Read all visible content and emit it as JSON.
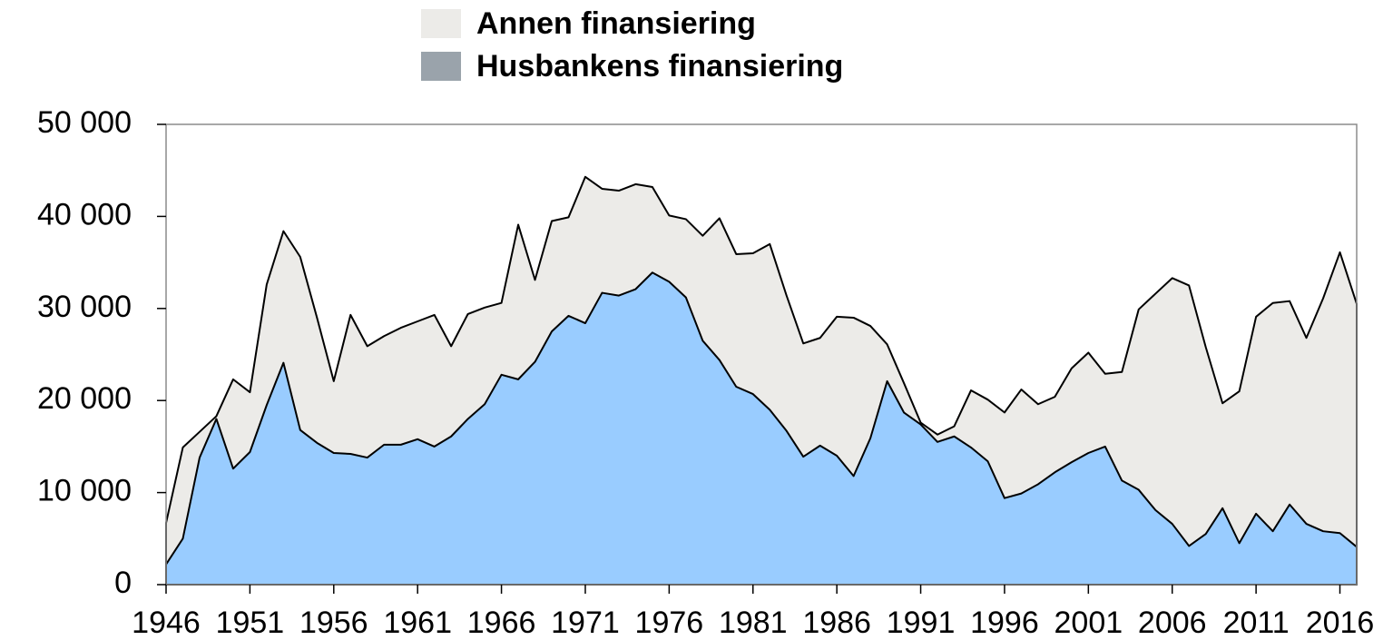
{
  "chart_data": {
    "type": "stacked_area",
    "x": [
      1946,
      1947,
      1948,
      1949,
      1950,
      1951,
      1952,
      1953,
      1954,
      1955,
      1956,
      1957,
      1958,
      1959,
      1960,
      1961,
      1962,
      1963,
      1964,
      1965,
      1966,
      1967,
      1968,
      1969,
      1970,
      1971,
      1972,
      1973,
      1974,
      1975,
      1976,
      1977,
      1978,
      1979,
      1980,
      1981,
      1982,
      1983,
      1984,
      1985,
      1986,
      1987,
      1988,
      1989,
      1990,
      1991,
      1992,
      1993,
      1994,
      1995,
      1996,
      1997,
      1998,
      1999,
      2000,
      2001,
      2002,
      2003,
      2004,
      2005,
      2006,
      2007,
      2008,
      2009,
      2010,
      2011,
      2012,
      2013,
      2014,
      2015,
      2016,
      2017
    ],
    "series": [
      {
        "name": "Annen finansiering",
        "color": "#ecebe8",
        "legend_color": "#ecebe8",
        "values": [
          4500,
          9900,
          2800,
          300,
          9700,
          6500,
          13100,
          14300,
          18800,
          13600,
          7800,
          15100,
          12100,
          11800,
          12700,
          12800,
          14300,
          9800,
          11400,
          10500,
          7800,
          16800,
          8900,
          12000,
          10700,
          15900,
          11300,
          11400,
          11400,
          9300,
          7200,
          8500,
          11400,
          15400,
          14400,
          15300,
          18000,
          14700,
          12300,
          11700,
          15100,
          17200,
          12200,
          4000,
          3200,
          200,
          800,
          1100,
          6200,
          6700,
          9300,
          11300,
          8700,
          8200,
          10200,
          10900,
          7900,
          11800,
          19600,
          23500,
          26700,
          28300,
          20300,
          11400,
          16500,
          21400,
          24800,
          22100,
          20200,
          25300,
          30500,
          26400
        ]
      },
      {
        "name": "Husbankens finansiering",
        "color": "#99ccff",
        "legend_color": "#9aa3ab",
        "values": [
          2200,
          5000,
          13800,
          18000,
          12600,
          14400,
          19500,
          24100,
          16800,
          15400,
          14300,
          14200,
          13800,
          15200,
          15200,
          15800,
          15000,
          16100,
          18000,
          19600,
          22800,
          22300,
          24200,
          27500,
          29200,
          28400,
          31700,
          31400,
          32100,
          33900,
          32900,
          31200,
          26500,
          24400,
          21500,
          20700,
          19000,
          16700,
          13900,
          15100,
          14000,
          11800,
          15900,
          22100,
          18700,
          17400,
          15500,
          16100,
          14900,
          13400,
          9400,
          9900,
          10900,
          12200,
          13300,
          14300,
          15000,
          11300,
          10300,
          8100,
          6600,
          4200,
          5500,
          8300,
          4500,
          7700,
          5800,
          8700,
          6600,
          5800,
          5600,
          4100
        ]
      }
    ],
    "xlim": [
      1946,
      2017
    ],
    "xticks": [
      1946,
      1951,
      1956,
      1961,
      1966,
      1971,
      1976,
      1981,
      1986,
      1991,
      1996,
      2001,
      2006,
      2011,
      2016
    ],
    "ylim": [
      0,
      50000
    ],
    "yticks": [
      0,
      {
        "value": 10000,
        "label": "10 000"
      },
      {
        "value": 20000,
        "label": "20 000"
      },
      {
        "value": 30000,
        "label": "30 000"
      },
      {
        "value": 40000,
        "label": "40 000"
      },
      {
        "value": 50000,
        "label": "50 000"
      }
    ],
    "grid": false
  }
}
